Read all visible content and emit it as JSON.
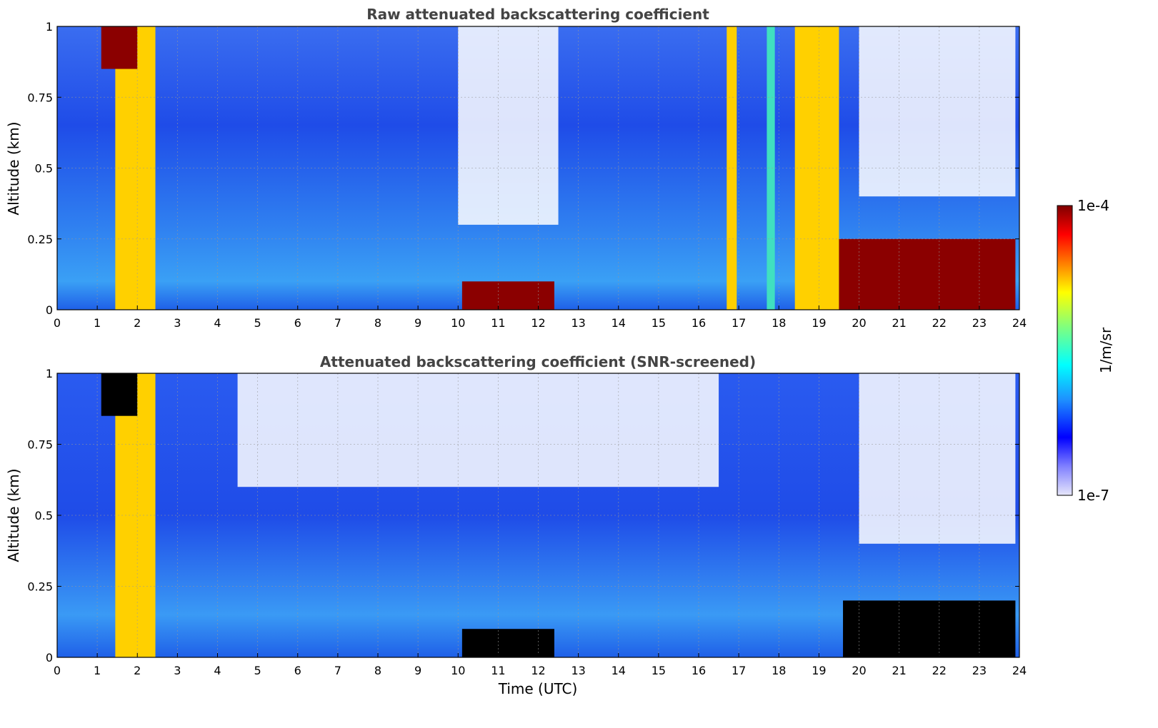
{
  "chart_data": [
    {
      "type": "heatmap",
      "title": "Raw attenuated backscattering coefficient",
      "xlabel": "",
      "ylabel": "Altitude (km)",
      "xlim": [
        0,
        24
      ],
      "ylim": [
        0,
        1
      ],
      "x_ticks": [
        "0",
        "1",
        "2",
        "3",
        "4",
        "5",
        "6",
        "7",
        "8",
        "9",
        "10",
        "11",
        "12",
        "13",
        "14",
        "15",
        "16",
        "17",
        "18",
        "19",
        "20",
        "21",
        "22",
        "23",
        "24"
      ],
      "y_ticks": [
        "0",
        "0.25",
        "0.5",
        "0.75",
        "1"
      ],
      "grid": true,
      "features": [
        {
          "t0": 1.45,
          "t1": 2.45,
          "a0": 0,
          "a1": 1,
          "level": "high"
        },
        {
          "t0": 1.1,
          "t1": 2.0,
          "a0": 0.85,
          "a1": 1,
          "level": "very-high"
        },
        {
          "t0": 10.1,
          "t1": 12.4,
          "a0": 0,
          "a1": 0.1,
          "level": "very-high"
        },
        {
          "t0": 16.7,
          "t1": 16.95,
          "a0": 0,
          "a1": 1,
          "level": "high"
        },
        {
          "t0": 17.7,
          "t1": 17.9,
          "a0": 0,
          "a1": 1,
          "level": "mid-high"
        },
        {
          "t0": 18.4,
          "t1": 19.5,
          "a0": 0,
          "a1": 1,
          "level": "high"
        },
        {
          "t0": 19.5,
          "t1": 23.9,
          "a0": 0,
          "a1": 0.25,
          "level": "very-high"
        },
        {
          "t0": 10.0,
          "t1": 12.5,
          "a0": 0.3,
          "a1": 1,
          "level": "missing"
        },
        {
          "t0": 20.0,
          "t1": 23.9,
          "a0": 0.4,
          "a1": 1,
          "level": "missing"
        }
      ]
    },
    {
      "type": "heatmap",
      "title": "Attenuated backscattering coefficient (SNR-screened)",
      "xlabel": "Time (UTC)",
      "ylabel": "Altitude (km)",
      "xlim": [
        0,
        24
      ],
      "ylim": [
        0,
        1
      ],
      "x_ticks": [
        "0",
        "1",
        "2",
        "3",
        "4",
        "5",
        "6",
        "7",
        "8",
        "9",
        "10",
        "11",
        "12",
        "13",
        "14",
        "15",
        "16",
        "17",
        "18",
        "19",
        "20",
        "21",
        "22",
        "23",
        "24"
      ],
      "y_ticks": [
        "0",
        "0.25",
        "0.5",
        "0.75",
        "1"
      ],
      "grid": true,
      "features": [
        {
          "t0": 1.45,
          "t1": 2.45,
          "a0": 0,
          "a1": 1,
          "level": "high"
        },
        {
          "t0": 1.1,
          "t1": 2.0,
          "a0": 0.85,
          "a1": 1,
          "level": "screened"
        },
        {
          "t0": 10.1,
          "t1": 12.4,
          "a0": 0,
          "a1": 0.1,
          "level": "screened"
        },
        {
          "t0": 19.6,
          "t1": 23.9,
          "a0": 0,
          "a1": 0.2,
          "level": "screened"
        },
        {
          "t0": 4.5,
          "t1": 16.5,
          "a0": 0.6,
          "a1": 1,
          "level": "missing"
        },
        {
          "t0": 20.0,
          "t1": 23.9,
          "a0": 0.4,
          "a1": 1,
          "level": "missing"
        }
      ]
    }
  ],
  "colorbar": {
    "label": "1/m/sr",
    "max_label": "1e-4",
    "min_label": "1e-7",
    "scale": "log",
    "colors": [
      "#e6e6fa",
      "#0000ff",
      "#1e90ff",
      "#00ffff",
      "#7fff7f",
      "#ffff00",
      "#ff7f00",
      "#ff0000",
      "#7f0000"
    ]
  }
}
